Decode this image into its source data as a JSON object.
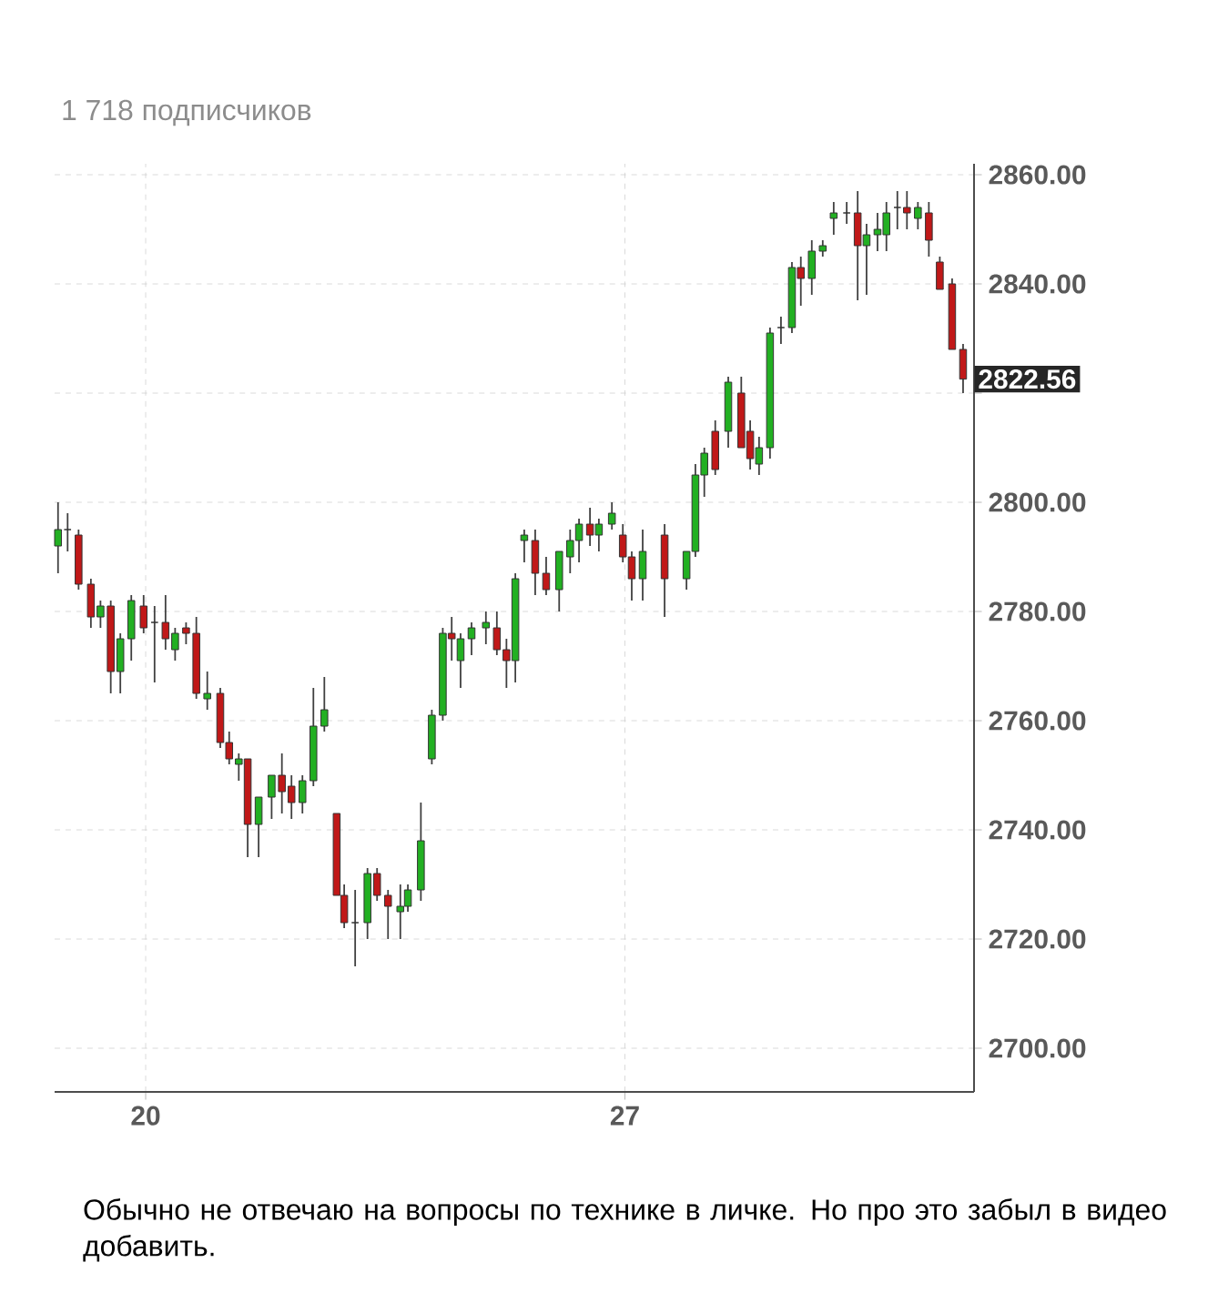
{
  "chart_data": {
    "type": "candlestick",
    "subtitle": "1 718 подписчиков",
    "x": [
      18.72,
      18.86,
      19.02,
      19.2,
      19.34,
      19.49,
      19.63,
      19.79,
      19.97,
      20.13,
      20.29,
      20.43,
      20.59,
      20.74,
      20.9,
      21.09,
      21.22,
      21.36,
      21.49,
      21.65,
      21.84,
      21.99,
      22.13,
      22.29,
      22.45,
      22.61,
      22.79,
      22.9,
      23.06,
      23.24,
      23.38,
      23.54,
      23.72,
      23.83,
      24.02,
      24.18,
      24.34,
      24.47,
      24.6,
      24.76,
      24.97,
      25.13,
      25.27,
      25.4,
      25.53,
      25.69,
      25.85,
      26.04,
      26.2,
      26.33,
      26.49,
      26.62,
      26.81,
      26.97,
      27.1,
      27.26,
      27.58,
      27.9,
      28.03,
      28.16,
      28.32,
      28.51,
      28.7,
      28.83,
      28.96,
      29.12,
      29.28,
      29.44,
      29.57,
      29.73,
      29.89,
      30.05,
      30.24,
      30.4,
      30.53,
      30.69,
      30.82,
      30.98,
      31.12,
      31.28,
      31.44,
      31.6,
      31.78,
      31.94
    ],
    "ohlc": [
      [
        2792,
        2800,
        2787,
        2795
      ],
      [
        2795,
        2798,
        2791,
        2795
      ],
      [
        2794,
        2795,
        2784,
        2785
      ],
      [
        2785,
        2786,
        2777,
        2779
      ],
      [
        2779,
        2782,
        2777,
        2781
      ],
      [
        2781,
        2782,
        2765,
        2769
      ],
      [
        2769,
        2776,
        2765,
        2775
      ],
      [
        2775,
        2783,
        2771,
        2782
      ],
      [
        2781,
        2783,
        2776,
        2777
      ],
      [
        2778,
        2781,
        2767,
        2778
      ],
      [
        2778,
        2783,
        2773,
        2775
      ],
      [
        2773,
        2777,
        2771,
        2776
      ],
      [
        2777,
        2778,
        2774,
        2776
      ],
      [
        2776,
        2779,
        2764,
        2765
      ],
      [
        2764,
        2769,
        2762,
        2765
      ],
      [
        2765,
        2766,
        2755,
        2756
      ],
      [
        2756,
        2758,
        2752,
        2753
      ],
      [
        2752,
        2754,
        2749,
        2753
      ],
      [
        2753,
        2753,
        2735,
        2741
      ],
      [
        2741,
        2746,
        2735,
        2746
      ],
      [
        2746,
        2750,
        2742,
        2750
      ],
      [
        2750,
        2754,
        2743,
        2747
      ],
      [
        2748,
        2750,
        2742,
        2745
      ],
      [
        2745,
        2750,
        2743,
        2749
      ],
      [
        2749,
        2766,
        2748,
        2759
      ],
      [
        2759,
        2768,
        2758,
        2762
      ],
      [
        2743,
        2743,
        2728,
        2728
      ],
      [
        2728,
        2730,
        2722,
        2723
      ],
      [
        2723,
        2729,
        2715,
        2723
      ],
      [
        2723,
        2733,
        2720,
        2732
      ],
      [
        2732,
        2733,
        2727,
        2728
      ],
      [
        2728,
        2729,
        2720,
        2726
      ],
      [
        2725,
        2730,
        2720,
        2726
      ],
      [
        2726,
        2730,
        2725,
        2729
      ],
      [
        2729,
        2745,
        2727,
        2738
      ],
      [
        2753,
        2762,
        2752,
        2761
      ],
      [
        2761,
        2777,
        2760,
        2776
      ],
      [
        2776,
        2779,
        2771,
        2775
      ],
      [
        2771,
        2776,
        2766,
        2775
      ],
      [
        2775,
        2778,
        2772,
        2777
      ],
      [
        2777,
        2780,
        2774,
        2778
      ],
      [
        2777,
        2780,
        2772,
        2773
      ],
      [
        2773,
        2775,
        2766,
        2771
      ],
      [
        2771,
        2787,
        2767,
        2786
      ],
      [
        2793,
        2795,
        2789,
        2794
      ],
      [
        2793,
        2795,
        2783,
        2787
      ],
      [
        2787,
        2790,
        2783,
        2784
      ],
      [
        2784,
        2791,
        2780,
        2791
      ],
      [
        2790,
        2795,
        2787,
        2793
      ],
      [
        2793,
        2797,
        2789,
        2796
      ],
      [
        2796,
        2799,
        2792,
        2794
      ],
      [
        2794,
        2797,
        2791,
        2796
      ],
      [
        2796,
        2800,
        2795,
        2798
      ],
      [
        2794,
        2796,
        2789,
        2790
      ],
      [
        2790,
        2791,
        2782,
        2786
      ],
      [
        2786,
        2795,
        2782,
        2791
      ],
      [
        2794,
        2796,
        2779,
        2786
      ],
      [
        2786,
        2791,
        2784,
        2791
      ],
      [
        2791,
        2807,
        2790,
        2805
      ],
      [
        2805,
        2810,
        2801,
        2809
      ],
      [
        2813,
        2815,
        2805,
        2806
      ],
      [
        2813,
        2823,
        2810,
        2822
      ],
      [
        2820,
        2823,
        2810,
        2810
      ],
      [
        2813,
        2815,
        2806,
        2808
      ],
      [
        2807,
        2812,
        2805,
        2810
      ],
      [
        2810,
        2832,
        2808,
        2831
      ],
      [
        2832,
        2834,
        2829,
        2832
      ],
      [
        2832,
        2844,
        2831,
        2843
      ],
      [
        2843,
        2845,
        2836,
        2841
      ],
      [
        2841,
        2848,
        2838,
        2846
      ],
      [
        2846,
        2848,
        2845,
        2847
      ],
      [
        2852,
        2855,
        2849,
        2853
      ],
      [
        2853,
        2855,
        2851,
        2853
      ],
      [
        2853,
        2857,
        2837,
        2847
      ],
      [
        2847,
        2851,
        2838,
        2849
      ],
      [
        2849,
        2853,
        2846,
        2850
      ],
      [
        2849,
        2855,
        2846,
        2853
      ],
      [
        2854,
        2857,
        2850,
        2854
      ],
      [
        2854,
        2857,
        2850,
        2853
      ],
      [
        2852,
        2855,
        2850,
        2854
      ],
      [
        2853,
        2855,
        2845,
        2848
      ],
      [
        2844,
        2845,
        2839,
        2839
      ],
      [
        2840,
        2841,
        2828,
        2828
      ],
      [
        2828,
        2829,
        2820,
        2822.56
      ]
    ],
    "xlim": [
      18.67,
      32.1
    ],
    "ylim": [
      2692,
      2862
    ],
    "xticks": [
      20,
      27
    ],
    "yticks": [
      {
        "value": 2700,
        "label": "2700.00"
      },
      {
        "value": 2720,
        "label": "2720.00"
      },
      {
        "value": 2740,
        "label": "2740.00"
      },
      {
        "value": 2760,
        "label": "2760.00"
      },
      {
        "value": 2780,
        "label": "2780.00"
      },
      {
        "value": 2800,
        "label": "2800.00"
      },
      {
        "value": 2820,
        "label": null
      },
      {
        "value": 2840,
        "label": "2840.00"
      },
      {
        "value": 2860,
        "label": "2860.00"
      }
    ],
    "grid": true,
    "annotations": [
      "2822.56",
      "Обычно не отвечаю на вопросы по технике в личке. Но про это забыл в видео добавить."
    ]
  }
}
